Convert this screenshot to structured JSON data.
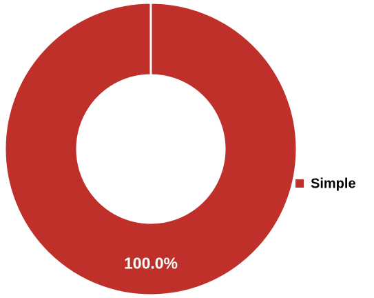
{
  "chart_data": {
    "type": "donut",
    "categories": [
      "Simple"
    ],
    "values": [
      100
    ],
    "value_labels": [
      "100.0%"
    ],
    "colors": [
      "#c0302a"
    ],
    "legend": "right"
  }
}
